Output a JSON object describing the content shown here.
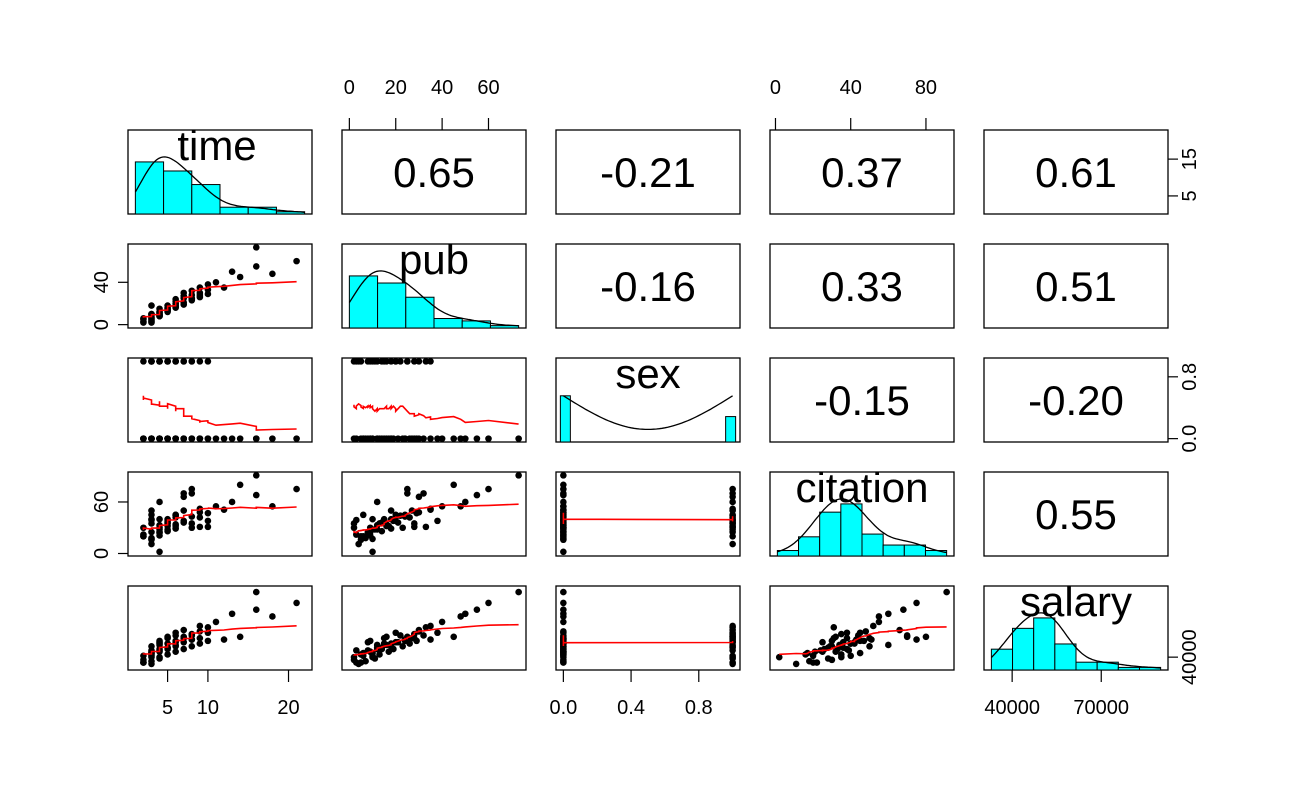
{
  "chart_data": {
    "type": "scatter",
    "subtype": "pairs-panels",
    "variables": [
      "time",
      "pub",
      "sex",
      "citation",
      "salary"
    ],
    "correlations": {
      "time_pub": "0.65",
      "time_sex": "-0.21",
      "time_citation": "0.37",
      "time_salary": "0.61",
      "pub_sex": "-0.16",
      "pub_citation": "0.33",
      "pub_salary": "0.51",
      "sex_citation": "-0.15",
      "sex_salary": "-0.20",
      "citation_salary": "0.55"
    },
    "axes": {
      "time": {
        "range": [
          1,
          22
        ],
        "ticks": [
          5,
          10,
          20
        ],
        "tick_labels": [
          "5",
          "10",
          "20"
        ],
        "right_ticks": [
          5,
          15
        ],
        "right_tick_labels": [
          "5",
          "15"
        ],
        "right_range": [
          1,
          22
        ]
      },
      "pub": {
        "range": [
          0,
          73
        ],
        "ticks": [
          0,
          20,
          40,
          60
        ],
        "tick_labels": [
          "0",
          "20",
          "40",
          "60"
        ],
        "left_ticks": [
          0,
          40
        ],
        "left_tick_labels": [
          "0",
          "40"
        ]
      },
      "sex": {
        "range": [
          0,
          1
        ],
        "ticks": [
          0.0,
          0.4,
          0.8
        ],
        "tick_labels": [
          "0.0",
          "0.4",
          "0.8"
        ],
        "right_ticks": [
          0.0,
          0.8
        ],
        "right_tick_labels": [
          "0.0",
          "0.8"
        ]
      },
      "citation": {
        "range": [
          1,
          91
        ],
        "ticks": [
          0,
          40,
          80
        ],
        "tick_labels": [
          "0",
          "40",
          "80"
        ],
        "left_ticks": [
          0,
          60
        ],
        "left_tick_labels": [
          "0",
          "60"
        ]
      },
      "salary": {
        "range": [
          33000,
          90000
        ],
        "ticks": [
          40000,
          70000
        ],
        "tick_labels": [
          "40000",
          "70000"
        ],
        "right_ticks": [
          40000
        ],
        "right_tick_labels": [
          "40000"
        ]
      }
    },
    "data": {
      "time": [
        3,
        3,
        3,
        4,
        4,
        5,
        6,
        7,
        8,
        9,
        2,
        3,
        4,
        5,
        6,
        8,
        10,
        3,
        4,
        5,
        6,
        7,
        9,
        11,
        2,
        3,
        3,
        4,
        5,
        6,
        7,
        8,
        10,
        13,
        16,
        18,
        21,
        2,
        3,
        4,
        5,
        6,
        7,
        8,
        9,
        10,
        12,
        14,
        4,
        5,
        6,
        7,
        8,
        9,
        3,
        4,
        5,
        6,
        2,
        3,
        16,
        4
      ],
      "pub": [
        18,
        3,
        2,
        8,
        9,
        16,
        20,
        30,
        25,
        35,
        5,
        10,
        12,
        15,
        22,
        28,
        33,
        4,
        11,
        14,
        20,
        25,
        30,
        40,
        2,
        6,
        9,
        12,
        18,
        24,
        27,
        32,
        38,
        50,
        55,
        48,
        60,
        3,
        7,
        10,
        13,
        17,
        19,
        23,
        26,
        29,
        35,
        45,
        8,
        12,
        16,
        21,
        24,
        28,
        5,
        9,
        14,
        18,
        6,
        10,
        73,
        15
      ],
      "sex": [
        1,
        1,
        1,
        1,
        1,
        1,
        1,
        1,
        1,
        1,
        1,
        1,
        1,
        1,
        1,
        1,
        1,
        1,
        1,
        1,
        1,
        1,
        0,
        0,
        0,
        0,
        0,
        0,
        0,
        0,
        0,
        0,
        0,
        0,
        0,
        0,
        0,
        0,
        0,
        0,
        0,
        0,
        0,
        0,
        0,
        0,
        0,
        0,
        0,
        0,
        0,
        0,
        0,
        0,
        0,
        0,
        0,
        0,
        0,
        0,
        0,
        0
      ],
      "citation": [
        50,
        39,
        35,
        25,
        30,
        32,
        45,
        66,
        75,
        52,
        20,
        40,
        60,
        38,
        44,
        35,
        31,
        11,
        28,
        36,
        42,
        70,
        48,
        55,
        30,
        45,
        25,
        33,
        40,
        45,
        50,
        70,
        38,
        60,
        68,
        55,
        75,
        22,
        18,
        2,
        35,
        32,
        38,
        30,
        42,
        47,
        51,
        80,
        24,
        28,
        34,
        36,
        43,
        31,
        16,
        21,
        26,
        29,
        20,
        17,
        91,
        40
      ],
      "salary": [
        48000,
        45000,
        40000,
        51000,
        52000,
        55000,
        58000,
        60000,
        53000,
        63000,
        36000,
        41000,
        49000,
        54000,
        56000,
        57000,
        62000,
        35000,
        39000,
        47000,
        51000,
        55000,
        59000,
        66000,
        38000,
        43000,
        44000,
        46000,
        50000,
        52000,
        54000,
        56000,
        58000,
        72000,
        75000,
        70000,
        80000,
        36000,
        37000,
        40000,
        42000,
        44000,
        46000,
        48000,
        50000,
        52000,
        53000,
        55000,
        45000,
        47000,
        49000,
        51000,
        53000,
        54000,
        42000,
        44000,
        46000,
        48000,
        41000,
        43000,
        88000,
        50000
      ]
    },
    "histogram_color": "#00FFFF",
    "smooth_color": "#FF0000",
    "point_color": "#000000"
  }
}
